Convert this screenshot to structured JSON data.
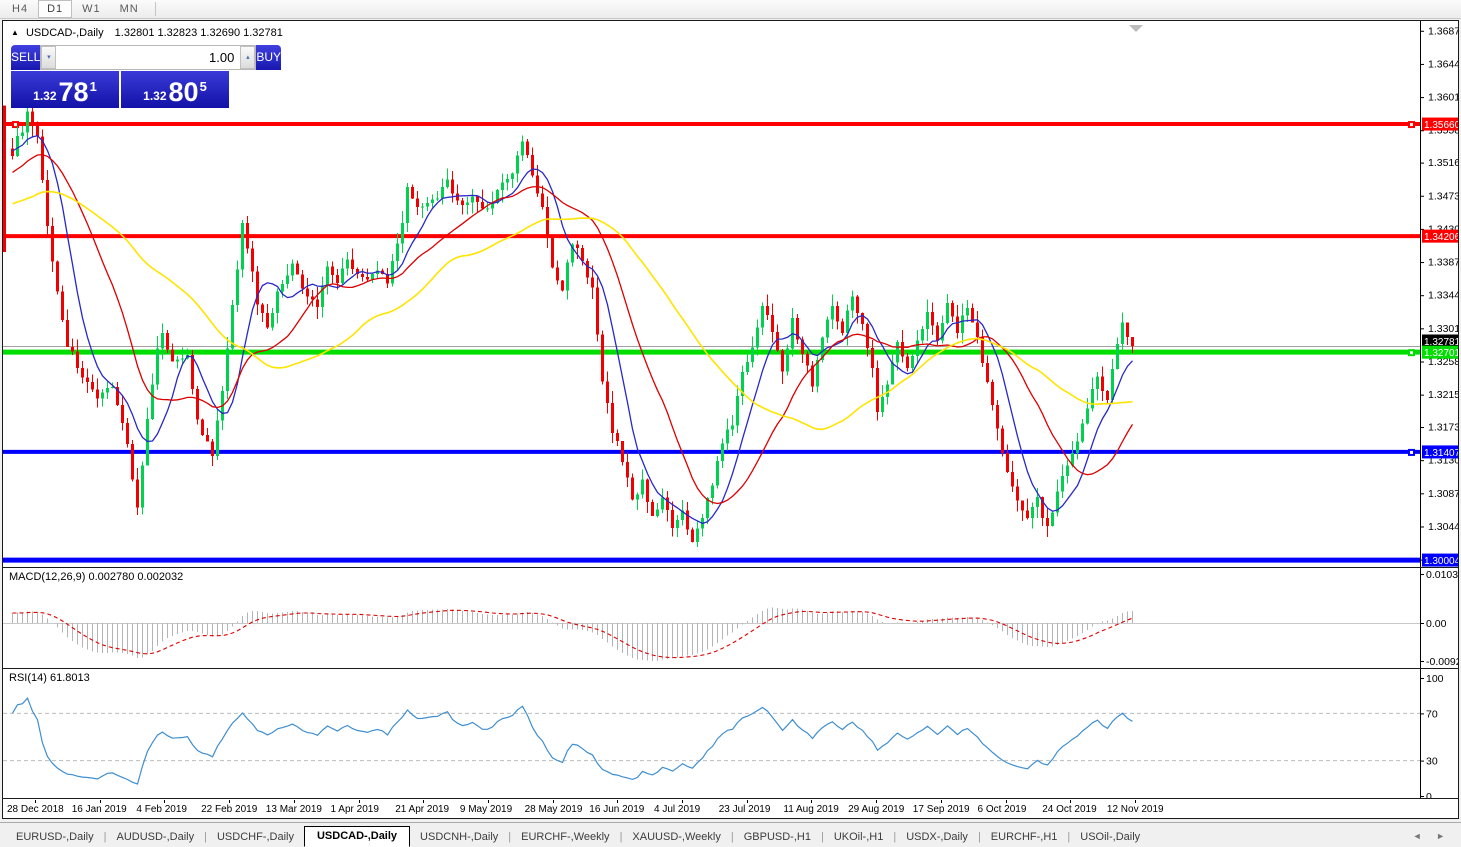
{
  "toolbar": {
    "timeframes": [
      {
        "label": "H4",
        "active": false
      },
      {
        "label": "D1",
        "active": true
      },
      {
        "label": "W1",
        "active": false
      },
      {
        "label": "MN",
        "active": false
      }
    ]
  },
  "chart_header": {
    "collapse_icon": "▲",
    "symbol_title": "USDCAD-,Daily",
    "ohlc_text": "1.32801 1.32823 1.32690 1.32781"
  },
  "trade_panel": {
    "sell_label": "SELL",
    "buy_label": "BUY",
    "volume": "1.00",
    "spin_down_icon": "▾",
    "spin_up_icon": "▴",
    "sell_price": {
      "small": "1.32",
      "big": "78",
      "sup": "1"
    },
    "buy_price": {
      "small": "1.32",
      "big": "80",
      "sup": "5"
    }
  },
  "indicators": {
    "macd_label": "MACD(12,26,9) 0.002780 0.002032",
    "rsi_label": "RSI(14) 61.8013"
  },
  "axes": {
    "price_ticks": [
      "1.36870",
      "1.36440",
      "1.36010",
      "1.35580",
      "1.35160",
      "1.34730",
      "1.34300",
      "1.33870",
      "1.33440",
      "1.33010",
      "1.32580",
      "1.32150",
      "1.31730",
      "1.31300",
      "1.30870",
      "1.30440",
      "1.30010"
    ],
    "macd_ticks": [
      {
        "label": "0.010311",
        "y": 6
      },
      {
        "label": "0.00",
        "y": 55
      },
      {
        "label": "-0.009203",
        "y": 93
      }
    ],
    "rsi_ticks": [
      {
        "label": "100",
        "value": 100
      },
      {
        "label": "70",
        "value": 70
      },
      {
        "label": "30",
        "value": 30
      },
      {
        "label": "0",
        "value": 0
      }
    ],
    "dates": [
      "28 Dec 2018",
      "16 Jan 2019",
      "4 Feb 2019",
      "22 Feb 2019",
      "13 Mar 2019",
      "1 Apr 2019",
      "21 Apr 2019",
      "9 May 2019",
      "28 May 2019",
      "16 Jun 2019",
      "4 Jul 2019",
      "23 Jul 2019",
      "11 Aug 2019",
      "29 Aug 2019",
      "17 Sep 2019",
      "6 Oct 2019",
      "24 Oct 2019",
      "12 Nov 2019"
    ]
  },
  "tabs": [
    {
      "label": "EURUSD-,Daily",
      "active": false
    },
    {
      "label": "AUDUSD-,Daily",
      "active": false
    },
    {
      "label": "USDCHF-,Daily",
      "active": false
    },
    {
      "label": "USDCAD-,Daily",
      "active": true
    },
    {
      "label": "USDCNH-,Daily",
      "active": false
    },
    {
      "label": "EURCHF-,Weekly",
      "active": false
    },
    {
      "label": "XAUUSD-,Weekly",
      "active": false
    },
    {
      "label": "GBPUSD-,H1",
      "active": false
    },
    {
      "label": "UKOil-,H1",
      "active": false
    },
    {
      "label": "USDX-,Daily",
      "active": false
    },
    {
      "label": "EURCHF-,H1",
      "active": false
    },
    {
      "label": "USOil-,Daily",
      "active": false
    }
  ],
  "tab_arrows": "◄ ►",
  "colors": {
    "bull": "#00d24f",
    "bear": "#f20000",
    "ma_fast": "#2828c8",
    "ma_mid": "#dd0000",
    "ma_slow": "#ffe400",
    "level_red": "#ff0000",
    "level_green": "#00dd00",
    "level_blue": "#0000ff",
    "current_line": "#a0a0a0",
    "current_label_bg": "#000000",
    "macd_hist": "#b4b4b4",
    "macd_signal": "#e00000",
    "rsi_line": "#3e8ed0",
    "rsi_level_dash": "#bdbdbd",
    "trade_blue": "#2020cc"
  },
  "chart_data": {
    "type": "candlestick",
    "symbol": "USDCAD-",
    "timeframe": "Daily",
    "title": "USDCAD-,Daily",
    "last_bar_ohlc": {
      "open": 1.32801,
      "high": 1.32823,
      "low": 1.3269,
      "close": 1.32781
    },
    "x_range_dates": [
      "28 Dec 2018",
      "20 Nov 2019"
    ],
    "y_axis_range": [
      1.298,
      1.37
    ],
    "bars_visible": 225,
    "prehistory_bars": 40,
    "price_path_anchors": [
      [
        -40,
        1.339
      ],
      [
        -30,
        1.3425
      ],
      [
        -20,
        1.3455
      ],
      [
        -12,
        1.349
      ],
      [
        -6,
        1.352
      ],
      [
        -2,
        1.355
      ],
      [
        0,
        1.353
      ],
      [
        2,
        1.356
      ],
      [
        3,
        1.3578
      ],
      [
        5,
        1.3545
      ],
      [
        8,
        1.3385
      ],
      [
        11,
        1.328
      ],
      [
        14,
        1.324
      ],
      [
        17,
        1.3205
      ],
      [
        20,
        1.323
      ],
      [
        23,
        1.315
      ],
      [
        25,
        1.3068
      ],
      [
        27,
        1.318
      ],
      [
        29,
        1.327
      ],
      [
        30,
        1.33
      ],
      [
        32,
        1.3255
      ],
      [
        35,
        1.327
      ],
      [
        37,
        1.318
      ],
      [
        40,
        1.3135
      ],
      [
        42,
        1.322
      ],
      [
        45,
        1.338
      ],
      [
        46,
        1.3443
      ],
      [
        49,
        1.3335
      ],
      [
        51,
        1.3305
      ],
      [
        53,
        1.3345
      ],
      [
        56,
        1.3385
      ],
      [
        58,
        1.335
      ],
      [
        61,
        1.333
      ],
      [
        63,
        1.3385
      ],
      [
        65,
        1.336
      ],
      [
        67,
        1.3395
      ],
      [
        69,
        1.337
      ],
      [
        71,
        1.336
      ],
      [
        73,
        1.338
      ],
      [
        75,
        1.3355
      ],
      [
        78,
        1.344
      ],
      [
        79,
        1.348
      ],
      [
        82,
        1.3455
      ],
      [
        85,
        1.347
      ],
      [
        87,
        1.349
      ],
      [
        90,
        1.346
      ],
      [
        92,
        1.347
      ],
      [
        95,
        1.3455
      ],
      [
        97,
        1.348
      ],
      [
        100,
        1.35
      ],
      [
        102,
        1.3545
      ],
      [
        104,
        1.35
      ],
      [
        106,
        1.3455
      ],
      [
        108,
        1.338
      ],
      [
        110,
        1.335
      ],
      [
        112,
        1.3415
      ],
      [
        114,
        1.339
      ],
      [
        116,
        1.335
      ],
      [
        118,
        1.323
      ],
      [
        120,
        1.317
      ],
      [
        122,
        1.313
      ],
      [
        124,
        1.308
      ],
      [
        126,
        1.31
      ],
      [
        128,
        1.306
      ],
      [
        130,
        1.308
      ],
      [
        132,
        1.304
      ],
      [
        134,
        1.306
      ],
      [
        136,
        1.302
      ],
      [
        138,
        1.306
      ],
      [
        140,
        1.31
      ],
      [
        142,
        1.315
      ],
      [
        144,
        1.318
      ],
      [
        146,
        1.324
      ],
      [
        148,
        1.328
      ],
      [
        150,
        1.333
      ],
      [
        152,
        1.33
      ],
      [
        154,
        1.325
      ],
      [
        156,
        1.331
      ],
      [
        158,
        1.327
      ],
      [
        160,
        1.323
      ],
      [
        162,
        1.329
      ],
      [
        164,
        1.333
      ],
      [
        166,
        1.33
      ],
      [
        168,
        1.334
      ],
      [
        170,
        1.331
      ],
      [
        172,
        1.325
      ],
      [
        173,
        1.319
      ],
      [
        175,
        1.323
      ],
      [
        177,
        1.328
      ],
      [
        179,
        1.325
      ],
      [
        181,
        1.329
      ],
      [
        183,
        1.332
      ],
      [
        185,
        1.329
      ],
      [
        187,
        1.333
      ],
      [
        189,
        1.33
      ],
      [
        191,
        1.333
      ],
      [
        193,
        1.329
      ],
      [
        195,
        1.323
      ],
      [
        197,
        1.317
      ],
      [
        199,
        1.311
      ],
      [
        201,
        1.308
      ],
      [
        203,
        1.306
      ],
      [
        205,
        1.308
      ],
      [
        207,
        1.304
      ],
      [
        209,
        1.309
      ],
      [
        211,
        1.312
      ],
      [
        213,
        1.315
      ],
      [
        215,
        1.32
      ],
      [
        217,
        1.324
      ],
      [
        219,
        1.321
      ],
      [
        221,
        1.328
      ],
      [
        222,
        1.331
      ],
      [
        223,
        1.329
      ],
      [
        224,
        1.32781
      ]
    ],
    "horizontal_levels": [
      {
        "price": 1.3566,
        "label": "1.35660",
        "color": "red",
        "thickness": 4
      },
      {
        "price": 1.34206,
        "label": "1.34206",
        "color": "red",
        "thickness": 4
      },
      {
        "price": 1.32701,
        "label": "1.32701",
        "color": "green",
        "thickness": 5
      },
      {
        "price": 1.31407,
        "label": "1.31407",
        "color": "blue",
        "thickness": 4
      },
      {
        "price": 1.30004,
        "label": "1.30004",
        "color": "blue",
        "thickness": 5
      }
    ],
    "current_price": {
      "value": 1.32781,
      "label": "1.32781"
    },
    "moving_averages": [
      {
        "period": 8,
        "colorKey": "ma_fast"
      },
      {
        "period": 20,
        "colorKey": "ma_mid"
      },
      {
        "period": 45,
        "colorKey": "ma_slow"
      }
    ],
    "macd": {
      "fast": 12,
      "slow": 26,
      "signal": 9,
      "current_main": 0.00278,
      "current_signal": 0.002032,
      "axis_max": 0.010311,
      "axis_min": -0.009203
    },
    "rsi": {
      "period": 14,
      "current": 61.8013,
      "levels": [
        70,
        30
      ],
      "axis": [
        0,
        100
      ]
    }
  }
}
